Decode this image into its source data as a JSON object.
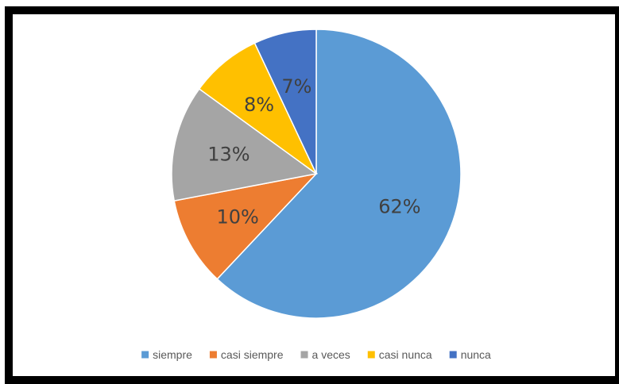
{
  "chart_data": {
    "type": "pie",
    "title": "",
    "legend_position": "bottom",
    "slices": [
      {
        "name": "siempre",
        "value": 62,
        "label": "62%",
        "color": "#5B9BD5"
      },
      {
        "name": "casi siempre",
        "value": 10,
        "label": "10%",
        "color": "#ED7D31"
      },
      {
        "name": "a veces",
        "value": 13,
        "label": "13%",
        "color": "#A5A5A5"
      },
      {
        "name": "casi nunca",
        "value": 8,
        "label": "8%",
        "color": "#FFC000"
      },
      {
        "name": "nunca",
        "value": 7,
        "label": "7%",
        "color": "#4472C4"
      }
    ]
  }
}
